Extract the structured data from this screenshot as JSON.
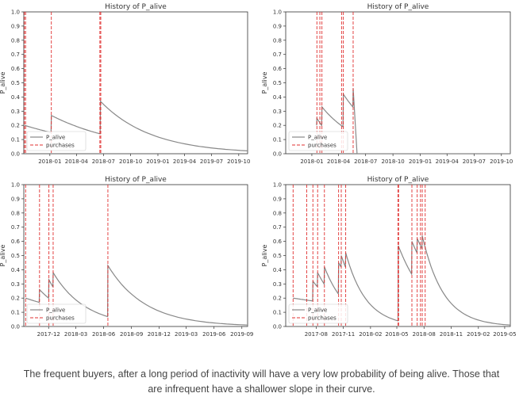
{
  "colors": {
    "p_alive_line": "#888888",
    "purchase_line": "#e03030",
    "axis": "#333333",
    "text": "#333333"
  },
  "chart_data": [
    {
      "type": "line",
      "title": "History of P_alive",
      "xlabel": "",
      "ylabel": "P_alive",
      "ylim": [
        0,
        1.0
      ],
      "yticks": [
        "0.0",
        "0.1",
        "0.2",
        "0.3",
        "0.4",
        "0.5",
        "0.6",
        "0.7",
        "0.8",
        "0.9",
        "1.0"
      ],
      "xrange": [
        "2017-10-05",
        "2019-10-31"
      ],
      "xticks": [
        {
          "date": "2018-01-01",
          "label": "2018-01"
        },
        {
          "date": "2018-04-01",
          "label": "2018-04"
        },
        {
          "date": "2018-07-01",
          "label": "2018-07"
        },
        {
          "date": "2018-10-01",
          "label": "2018-10"
        },
        {
          "date": "2019-01-01",
          "label": "2019-01"
        },
        {
          "date": "2019-04-01",
          "label": "2019-04"
        },
        {
          "date": "2019-07-01",
          "label": "2019-07"
        },
        {
          "date": "2019-10-01",
          "label": "2019-10"
        }
      ],
      "legend": {
        "position": "lower-left",
        "entries": [
          "P_alive",
          "purchases"
        ]
      },
      "series": [
        {
          "name": "P_alive",
          "style": "solid",
          "points": [
            [
              "2017-10-08",
              0.2
            ],
            [
              "2018-01-05",
              0.15
            ],
            [
              "2018-01-06",
              0.27
            ],
            [
              "2018-06-20",
              0.14
            ],
            [
              "2018-06-21",
              0.37
            ],
            [
              "2019-10-31",
              0.02
            ]
          ]
        },
        {
          "name": "purchases",
          "style": "dashed",
          "dates": [
            "2017-10-07",
            "2017-10-11",
            "2018-01-06",
            "2018-06-19",
            "2018-06-22"
          ]
        }
      ]
    },
    {
      "type": "line",
      "title": "History of P_alive",
      "xlabel": "",
      "ylabel": "P_alive",
      "ylim": [
        0,
        1.0
      ],
      "yticks": [
        "0.0",
        "0.1",
        "0.2",
        "0.3",
        "0.4",
        "0.5",
        "0.6",
        "0.7",
        "0.8",
        "0.9",
        "1.0"
      ],
      "xrange": [
        "2017-10-05",
        "2019-10-31"
      ],
      "xticks": [
        {
          "date": "2018-01-01",
          "label": "2018-01"
        },
        {
          "date": "2018-04-01",
          "label": "2018-04"
        },
        {
          "date": "2018-07-01",
          "label": "2018-07"
        },
        {
          "date": "2018-10-01",
          "label": "2018-10"
        },
        {
          "date": "2019-01-01",
          "label": "2019-01"
        },
        {
          "date": "2019-04-01",
          "label": "2019-04"
        },
        {
          "date": "2019-07-01",
          "label": "2019-07"
        },
        {
          "date": "2019-10-01",
          "label": "2019-10"
        }
      ],
      "legend": {
        "position": "lower-left",
        "entries": [
          "P_alive",
          "purchases"
        ]
      },
      "series": [
        {
          "name": "P_alive",
          "style": "solid",
          "points": [
            [
              "2018-01-17",
              0.2
            ],
            [
              "2018-01-18",
              0.25
            ],
            [
              "2018-02-03",
              0.2
            ],
            [
              "2018-02-04",
              0.33
            ],
            [
              "2018-04-16",
              0.19
            ],
            [
              "2018-04-17",
              0.42
            ],
            [
              "2018-05-19",
              0.33
            ],
            [
              "2018-05-20",
              0.46
            ],
            [
              "2019-10-31",
              0.0
            ]
          ]
        },
        {
          "name": "purchases",
          "style": "dashed",
          "dates": [
            "2018-01-18",
            "2018-01-28",
            "2018-02-04",
            "2018-04-11",
            "2018-04-17",
            "2018-05-20"
          ]
        }
      ]
    },
    {
      "type": "line",
      "title": "History of P_alive",
      "xlabel": "",
      "ylabel": "P_alive",
      "ylim": [
        0,
        1.0
      ],
      "yticks": [
        "0.0",
        "0.1",
        "0.2",
        "0.3",
        "0.4",
        "0.5",
        "0.6",
        "0.7",
        "0.8",
        "0.9",
        "1.0"
      ],
      "xrange": [
        "2017-09-10",
        "2019-09-20"
      ],
      "xticks": [
        {
          "date": "2017-12-01",
          "label": "2017-12"
        },
        {
          "date": "2018-03-01",
          "label": "2018-03"
        },
        {
          "date": "2018-06-01",
          "label": "2018-06"
        },
        {
          "date": "2018-09-01",
          "label": "2018-09"
        },
        {
          "date": "2018-12-01",
          "label": "2018-12"
        },
        {
          "date": "2019-03-01",
          "label": "2019-03"
        },
        {
          "date": "2019-06-01",
          "label": "2019-06"
        },
        {
          "date": "2019-09-01",
          "label": "2019-09"
        }
      ],
      "legend": {
        "position": "lower-left",
        "entries": [
          "P_alive",
          "purchases"
        ]
      },
      "series": [
        {
          "name": "P_alive",
          "style": "solid",
          "points": [
            [
              "2017-09-16",
              0.2
            ],
            [
              "2017-10-31",
              0.17
            ],
            [
              "2017-11-01",
              0.26
            ],
            [
              "2017-12-01",
              0.2
            ],
            [
              "2017-12-02",
              0.33
            ],
            [
              "2017-12-15",
              0.28
            ],
            [
              "2017-12-16",
              0.38
            ],
            [
              "2018-06-14",
              0.07
            ],
            [
              "2018-06-15",
              0.43
            ],
            [
              "2019-09-20",
              0.01
            ]
          ]
        },
        {
          "name": "purchases",
          "style": "dashed",
          "dates": [
            "2017-09-16",
            "2017-11-01",
            "2017-12-02",
            "2017-12-16",
            "2018-06-15"
          ]
        }
      ]
    },
    {
      "type": "line",
      "title": "History of P_alive",
      "xlabel": "",
      "ylabel": "P_alive",
      "ylim": [
        0,
        1.0
      ],
      "yticks": [
        "0.0",
        "0.1",
        "0.2",
        "0.3",
        "0.4",
        "0.5",
        "0.6",
        "0.7",
        "0.8",
        "0.9",
        "1.0"
      ],
      "xrange": [
        "2017-04-20",
        "2019-05-20"
      ],
      "xticks": [
        {
          "date": "2017-08-01",
          "label": "2017-08"
        },
        {
          "date": "2017-11-01",
          "label": "2017-11"
        },
        {
          "date": "2018-02-01",
          "label": "2018-02"
        },
        {
          "date": "2018-05-01",
          "label": "2018-05"
        },
        {
          "date": "2018-08-01",
          "label": "2018-08"
        },
        {
          "date": "2018-11-01",
          "label": "2018-11"
        },
        {
          "date": "2019-02-01",
          "label": "2019-02"
        },
        {
          "date": "2019-05-01",
          "label": "2019-05"
        }
      ],
      "legend": {
        "position": "lower-left",
        "entries": [
          "P_alive",
          "purchases"
        ]
      },
      "series": [
        {
          "name": "P_alive",
          "style": "solid",
          "points": [
            [
              "2017-05-15",
              0.2
            ],
            [
              "2017-07-20",
              0.18
            ],
            [
              "2017-07-21",
              0.32
            ],
            [
              "2017-08-05",
              0.28
            ],
            [
              "2017-08-06",
              0.38
            ],
            [
              "2017-08-28",
              0.3
            ],
            [
              "2017-08-29",
              0.42
            ],
            [
              "2017-10-15",
              0.23
            ],
            [
              "2017-10-16",
              0.45
            ],
            [
              "2017-10-24",
              0.42
            ],
            [
              "2017-10-25",
              0.5
            ],
            [
              "2017-11-08",
              0.42
            ],
            [
              "2017-11-09",
              0.52
            ],
            [
              "2018-05-05",
              0.04
            ],
            [
              "2018-05-06",
              0.57
            ],
            [
              "2018-06-20",
              0.37
            ],
            [
              "2018-06-21",
              0.6
            ],
            [
              "2018-07-08",
              0.52
            ],
            [
              "2018-07-09",
              0.62
            ],
            [
              "2018-07-25",
              0.55
            ],
            [
              "2018-07-26",
              0.64
            ],
            [
              "2019-05-20",
              0.01
            ]
          ]
        },
        {
          "name": "purchases",
          "style": "dashed",
          "dates": [
            "2017-05-15",
            "2017-06-30",
            "2017-07-21",
            "2017-08-06",
            "2017-08-29",
            "2017-10-16",
            "2017-10-25",
            "2017-11-09",
            "2018-05-05",
            "2018-05-07",
            "2018-06-21",
            "2018-07-09",
            "2018-07-20",
            "2018-07-26",
            "2018-08-05"
          ]
        }
      ]
    }
  ],
  "caption": {
    "line1": "The frequent buyers, after a long period of inactivity will have a very low probability of being alive. Those that",
    "line2": "are infrequent have a shallower slope in their curve."
  }
}
